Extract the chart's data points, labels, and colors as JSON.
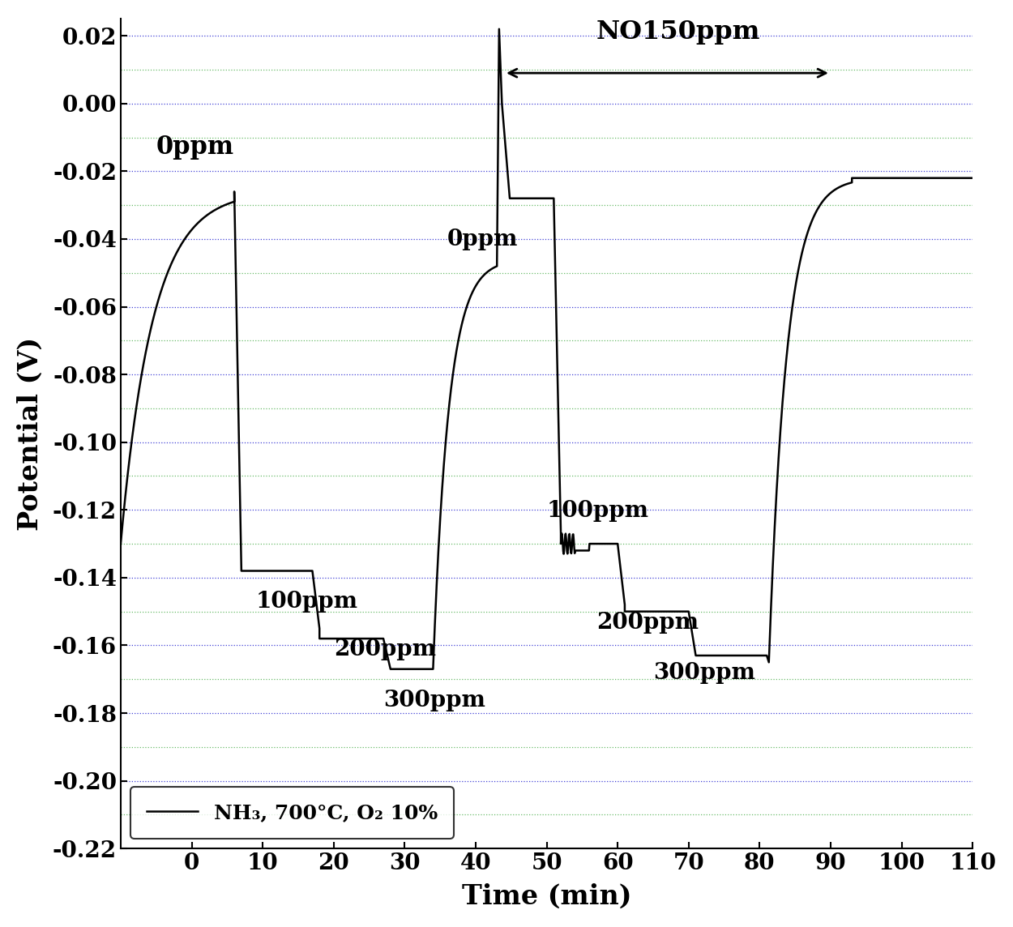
{
  "title": "",
  "xlabel": "Time (min)",
  "ylabel": "Potential (V)",
  "xlim": [
    -10,
    110
  ],
  "ylim": [
    -0.22,
    0.025
  ],
  "xticks": [
    0,
    10,
    20,
    30,
    40,
    50,
    60,
    70,
    80,
    90,
    100,
    110
  ],
  "yticks": [
    0.02,
    0.0,
    -0.02,
    -0.04,
    -0.06,
    -0.08,
    -0.1,
    -0.12,
    -0.14,
    -0.16,
    -0.18,
    -0.2,
    -0.22
  ],
  "legend_label": "NH₃, 700°C, O₂ 10%",
  "annotation_NO": "NO150ppm",
  "annotation_0ppm_1": "0ppm",
  "annotation_0ppm_2": "0ppm",
  "annotation_100ppm_1": "100ppm",
  "annotation_200ppm_1": "200ppm",
  "annotation_300ppm_1": "300ppm",
  "annotation_100ppm_2": "100ppm",
  "annotation_200ppm_2": "200ppm",
  "annotation_300ppm_2": "300ppm",
  "blue_grid_color": "#1111cc",
  "green_grid_color": "#44aa44",
  "line_color": "#000000",
  "background_color": "#ffffff"
}
